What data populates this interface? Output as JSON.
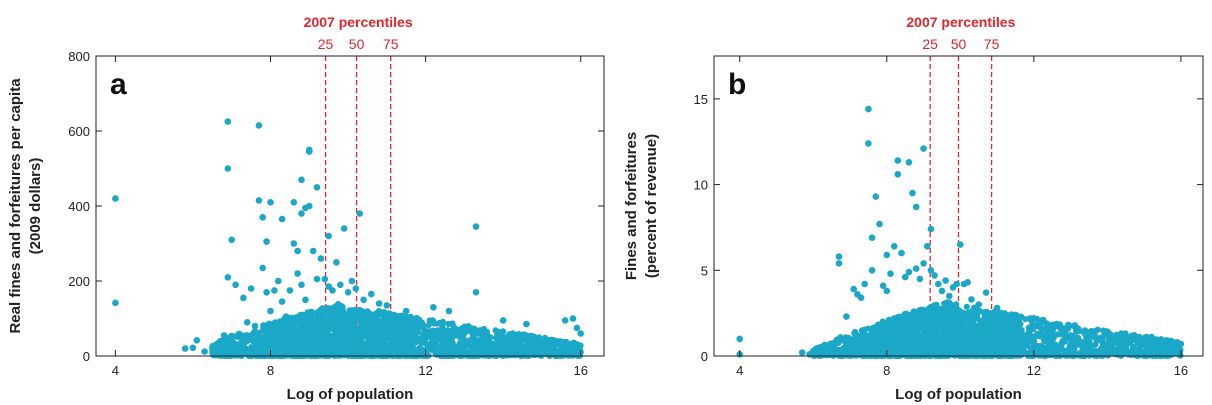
{
  "chart_data": [
    {
      "type": "scatter",
      "panel_label": "a",
      "xlabel": "Log of population",
      "ylabel_lines": [
        "Real fines and forfeitures per capita",
        "(2009 dollars)"
      ],
      "xlim": [
        3.5,
        16.6
      ],
      "ylim": [
        0,
        800
      ],
      "xticks": [
        4,
        8,
        12,
        16
      ],
      "yticks": [
        0,
        200,
        400,
        600,
        800
      ],
      "grid": false,
      "percentile_title": "2007 percentiles",
      "percentiles": [
        {
          "label": "25",
          "x": 9.42
        },
        {
          "label": "50",
          "x": 10.22
        },
        {
          "label": "75",
          "x": 11.1
        }
      ],
      "highlight_color": "#e0262e",
      "point_color": "#1ba8c8",
      "points": [
        [
          4.0,
          420
        ],
        [
          4.0,
          142
        ],
        [
          5.8,
          20
        ],
        [
          6.0,
          22
        ],
        [
          6.1,
          42
        ],
        [
          6.3,
          12
        ],
        [
          6.5,
          22
        ],
        [
          6.7,
          35
        ],
        [
          6.8,
          55
        ],
        [
          6.9,
          210
        ],
        [
          6.9,
          500
        ],
        [
          6.9,
          625
        ],
        [
          7.0,
          310
        ],
        [
          7.1,
          190
        ],
        [
          7.3,
          155
        ],
        [
          7.4,
          90
        ],
        [
          7.5,
          180
        ],
        [
          7.6,
          80
        ],
        [
          7.7,
          415
        ],
        [
          7.7,
          615
        ],
        [
          7.8,
          370
        ],
        [
          7.8,
          235
        ],
        [
          7.9,
          170
        ],
        [
          7.9,
          305
        ],
        [
          8.0,
          410
        ],
        [
          8.0,
          120
        ],
        [
          8.1,
          175
        ],
        [
          8.2,
          200
        ],
        [
          8.3,
          365
        ],
        [
          8.3,
          145
        ],
        [
          8.4,
          105
        ],
        [
          8.5,
          175
        ],
        [
          8.6,
          410
        ],
        [
          8.6,
          300
        ],
        [
          8.7,
          280
        ],
        [
          8.7,
          220
        ],
        [
          8.8,
          470
        ],
        [
          8.8,
          380
        ],
        [
          8.8,
          190
        ],
        [
          8.9,
          395
        ],
        [
          8.9,
          150
        ],
        [
          9.0,
          550
        ],
        [
          9.0,
          545
        ],
        [
          9.0,
          400
        ],
        [
          9.1,
          280
        ],
        [
          9.2,
          450
        ],
        [
          9.2,
          205
        ],
        [
          9.3,
          260
        ],
        [
          9.4,
          205
        ],
        [
          9.5,
          320
        ],
        [
          9.5,
          185
        ],
        [
          9.6,
          175
        ],
        [
          9.7,
          250
        ],
        [
          9.8,
          190
        ],
        [
          9.9,
          340
        ],
        [
          10.0,
          170
        ],
        [
          10.1,
          200
        ],
        [
          10.2,
          180
        ],
        [
          10.3,
          380
        ],
        [
          10.4,
          150
        ],
        [
          10.6,
          165
        ],
        [
          10.8,
          140
        ],
        [
          11.0,
          135
        ],
        [
          11.5,
          120
        ],
        [
          12.2,
          130
        ],
        [
          12.6,
          120
        ],
        [
          13.3,
          345
        ],
        [
          13.3,
          170
        ],
        [
          14.0,
          95
        ],
        [
          14.6,
          85
        ],
        [
          15.6,
          95
        ],
        [
          15.8,
          100
        ],
        [
          15.9,
          75
        ],
        [
          16.0,
          60
        ]
      ],
      "dense_band": {
        "x_from": 6.5,
        "x_to": 16.0,
        "x_peak": 9.8,
        "y_peak": 140,
        "y_start": 30,
        "y_end": 35
      }
    },
    {
      "type": "scatter",
      "panel_label": "b",
      "xlabel": "Log of population",
      "ylabel_lines": [
        "Fines and forfeitures",
        "(percent of revenue)"
      ],
      "xlim": [
        3.3,
        16.6
      ],
      "ylim": [
        0,
        17.5
      ],
      "xticks": [
        4,
        8,
        12,
        16
      ],
      "yticks": [
        0,
        5,
        10,
        15
      ],
      "grid": false,
      "percentile_title": "2007 percentiles",
      "percentiles": [
        {
          "label": "25",
          "x": 9.18
        },
        {
          "label": "50",
          "x": 9.95
        },
        {
          "label": "75",
          "x": 10.85
        }
      ],
      "highlight_color": "#e0262e",
      "point_color": "#1ba8c8",
      "points": [
        [
          4.0,
          1.0
        ],
        [
          4.0,
          0.1
        ],
        [
          5.7,
          0.2
        ],
        [
          5.9,
          0.1
        ],
        [
          6.0,
          0.3
        ],
        [
          6.3,
          0.2
        ],
        [
          6.7,
          5.8
        ],
        [
          6.7,
          5.4
        ],
        [
          6.9,
          2.3
        ],
        [
          7.1,
          3.9
        ],
        [
          7.2,
          3.6
        ],
        [
          7.3,
          3.4
        ],
        [
          7.4,
          4.2
        ],
        [
          7.5,
          14.4
        ],
        [
          7.5,
          12.4
        ],
        [
          7.6,
          6.9
        ],
        [
          7.6,
          5.0
        ],
        [
          7.7,
          9.3
        ],
        [
          7.8,
          7.7
        ],
        [
          7.9,
          4.1
        ],
        [
          8.0,
          5.9
        ],
        [
          8.0,
          3.8
        ],
        [
          8.1,
          4.8
        ],
        [
          8.2,
          6.4
        ],
        [
          8.3,
          11.4
        ],
        [
          8.3,
          10.6
        ],
        [
          8.4,
          6.0
        ],
        [
          8.5,
          4.6
        ],
        [
          8.6,
          11.3
        ],
        [
          8.6,
          4.9
        ],
        [
          8.7,
          9.5
        ],
        [
          8.8,
          8.7
        ],
        [
          8.8,
          5.1
        ],
        [
          8.9,
          4.5
        ],
        [
          9.0,
          12.1
        ],
        [
          9.0,
          5.4
        ],
        [
          9.1,
          6.4
        ],
        [
          9.2,
          7.4
        ],
        [
          9.2,
          5.0
        ],
        [
          9.3,
          4.7
        ],
        [
          9.4,
          4.2
        ],
        [
          9.5,
          3.8
        ],
        [
          9.6,
          4.4
        ],
        [
          9.7,
          3.5
        ],
        [
          9.8,
          4.0
        ],
        [
          9.9,
          4.2
        ],
        [
          10.0,
          6.5
        ],
        [
          10.1,
          4.2
        ],
        [
          10.2,
          4.3
        ],
        [
          10.3,
          3.3
        ],
        [
          10.5,
          3.0
        ],
        [
          10.7,
          3.7
        ],
        [
          11.0,
          2.8
        ],
        [
          11.5,
          2.4
        ],
        [
          12.0,
          2.2
        ],
        [
          12.6,
          1.8
        ],
        [
          13.2,
          1.6
        ],
        [
          14.0,
          1.3
        ],
        [
          14.6,
          1.0
        ],
        [
          15.2,
          1.1
        ],
        [
          15.6,
          0.9
        ],
        [
          15.9,
          0.8
        ],
        [
          16.0,
          0.7
        ]
      ],
      "dense_band": {
        "x_from": 6.0,
        "x_to": 16.0,
        "x_peak": 9.6,
        "y_peak": 3.2,
        "y_start": 0.3,
        "y_end": 0.8
      }
    }
  ]
}
